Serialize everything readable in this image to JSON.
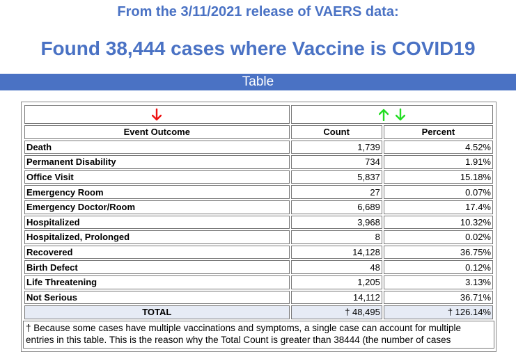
{
  "header": {
    "release_line": "From the 3/11/2021 release of VAERS data:",
    "found_line": "Found 38,444 cases where Vaccine is COVID19",
    "section_bar": "Table"
  },
  "table": {
    "columns": [
      "Event Outcome",
      "Count",
      "Percent"
    ],
    "sort_icons": {
      "outcome": {
        "name": "arrow-down-icon",
        "color": "#ee1111"
      },
      "count": [
        {
          "name": "arrow-up-icon",
          "color": "#22dd22"
        },
        {
          "name": "arrow-down-icon",
          "color": "#22dd22"
        }
      ]
    },
    "rows": [
      {
        "outcome": "Death",
        "count": "1,739",
        "percent": "4.52%"
      },
      {
        "outcome": "Permanent Disability",
        "count": "734",
        "percent": "1.91%"
      },
      {
        "outcome": "Office Visit",
        "count": "5,837",
        "percent": "15.18%"
      },
      {
        "outcome": "Emergency Room",
        "count": "27",
        "percent": "0.07%"
      },
      {
        "outcome": "Emergency Doctor/Room",
        "count": "6,689",
        "percent": "17.4%"
      },
      {
        "outcome": "Hospitalized",
        "count": "3,968",
        "percent": "10.32%"
      },
      {
        "outcome": "Hospitalized, Prolonged",
        "count": "8",
        "percent": "0.02%"
      },
      {
        "outcome": "Recovered",
        "count": "14,128",
        "percent": "36.75%"
      },
      {
        "outcome": "Birth Defect",
        "count": "48",
        "percent": "0.12%"
      },
      {
        "outcome": "Life Threatening",
        "count": "1,205",
        "percent": "3.13%"
      },
      {
        "outcome": "Not Serious",
        "count": "14,112",
        "percent": "36.71%"
      }
    ],
    "total": {
      "label": "TOTAL",
      "count": "† 48,495",
      "percent": "† 126.14%"
    },
    "footnote": "† Because some cases have multiple vaccinations and symptoms, a single case can account for multiple entries in this table. This is the reason why the Total Count is greater than 38444 (the number of cases"
  },
  "colors": {
    "accent_blue": "#4a72c4",
    "total_row_bg": "#e6ebf5"
  }
}
